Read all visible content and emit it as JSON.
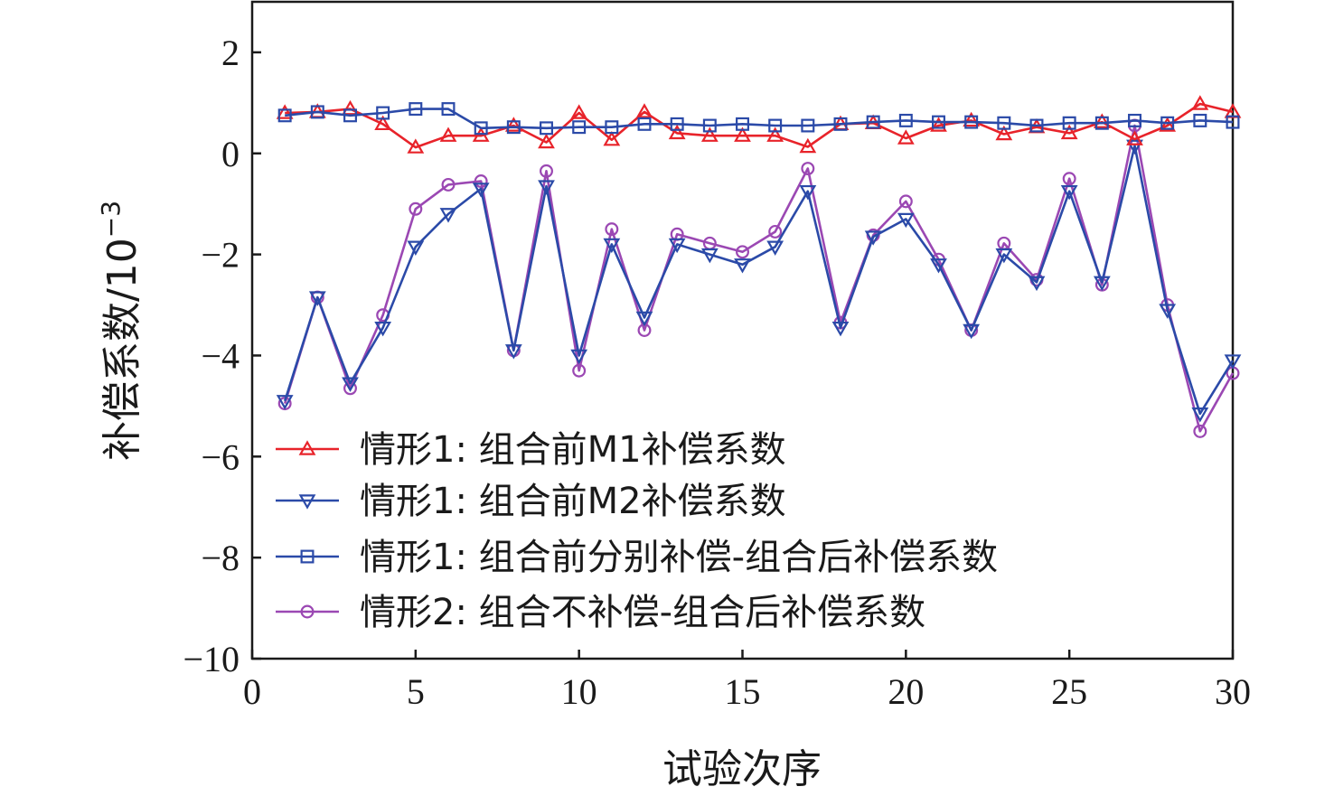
{
  "chart_data": {
    "type": "line",
    "xlabel": "试验次序",
    "ylabel": "补偿系数/10",
    "ylabel_exponent": "−3",
    "xlim": [
      0,
      30
    ],
    "ylim": [
      -10,
      3
    ],
    "xticks": [
      0,
      5,
      10,
      15,
      20,
      25,
      30
    ],
    "xtick_labels": [
      "0",
      "5",
      "10",
      "15",
      "20",
      "25",
      "30"
    ],
    "yticks": [
      2,
      0,
      -2,
      -4,
      -6,
      -8,
      -10
    ],
    "ytick_labels": [
      "2",
      "0",
      "−2",
      "−4",
      "−6",
      "−8",
      "−10"
    ],
    "grid": false,
    "legend_position": "bottom-left",
    "x": [
      1,
      2,
      3,
      4,
      5,
      6,
      7,
      8,
      9,
      10,
      11,
      12,
      13,
      14,
      15,
      16,
      17,
      18,
      19,
      20,
      21,
      22,
      23,
      24,
      25,
      26,
      27,
      28,
      29,
      30
    ],
    "series": [
      {
        "name": "情形1: 组合前M1补偿系数",
        "color": "#e8232a",
        "marker": "triangle-up",
        "values": [
          0.8,
          0.82,
          0.88,
          0.58,
          0.12,
          0.35,
          0.35,
          0.55,
          0.22,
          0.8,
          0.27,
          0.82,
          0.4,
          0.35,
          0.35,
          0.35,
          0.13,
          0.58,
          0.6,
          0.3,
          0.55,
          0.65,
          0.38,
          0.52,
          0.4,
          0.62,
          0.28,
          0.55,
          0.98,
          0.82
        ]
      },
      {
        "name": "情形1: 组合前M2补偿系数",
        "color": "#2b4aa8",
        "marker": "triangle-down",
        "values": [
          -4.9,
          -2.85,
          -4.55,
          -3.45,
          -1.85,
          -1.2,
          -0.7,
          -3.9,
          -0.65,
          -4.0,
          -1.8,
          -3.25,
          -1.8,
          -2.0,
          -2.2,
          -1.85,
          -0.75,
          -3.45,
          -1.65,
          -1.3,
          -2.2,
          -3.5,
          -2.0,
          -2.55,
          -0.75,
          -2.55,
          0.15,
          -3.1,
          -5.15,
          -4.1
        ]
      },
      {
        "name": "情形1: 组合前分别补偿-组合后补偿系数",
        "color": "#2b4aa8",
        "marker": "square",
        "values": [
          0.75,
          0.82,
          0.75,
          0.8,
          0.88,
          0.88,
          0.5,
          0.52,
          0.5,
          0.52,
          0.52,
          0.58,
          0.58,
          0.55,
          0.58,
          0.55,
          0.55,
          0.58,
          0.62,
          0.65,
          0.62,
          0.62,
          0.6,
          0.55,
          0.6,
          0.6,
          0.65,
          0.6,
          0.65,
          0.62
        ]
      },
      {
        "name": "情形2: 组合不补偿-组合后补偿系数",
        "color": "#9b48b3",
        "marker": "circle",
        "values": [
          -4.95,
          -2.85,
          -4.65,
          -3.2,
          -1.1,
          -0.62,
          -0.55,
          -3.9,
          -0.35,
          -4.3,
          -1.5,
          -3.5,
          -1.6,
          -1.78,
          -1.95,
          -1.55,
          -0.3,
          -3.35,
          -1.62,
          -0.95,
          -2.1,
          -3.5,
          -1.78,
          -2.5,
          -0.5,
          -2.6,
          0.55,
          -3.0,
          -5.5,
          -4.35
        ]
      }
    ]
  }
}
